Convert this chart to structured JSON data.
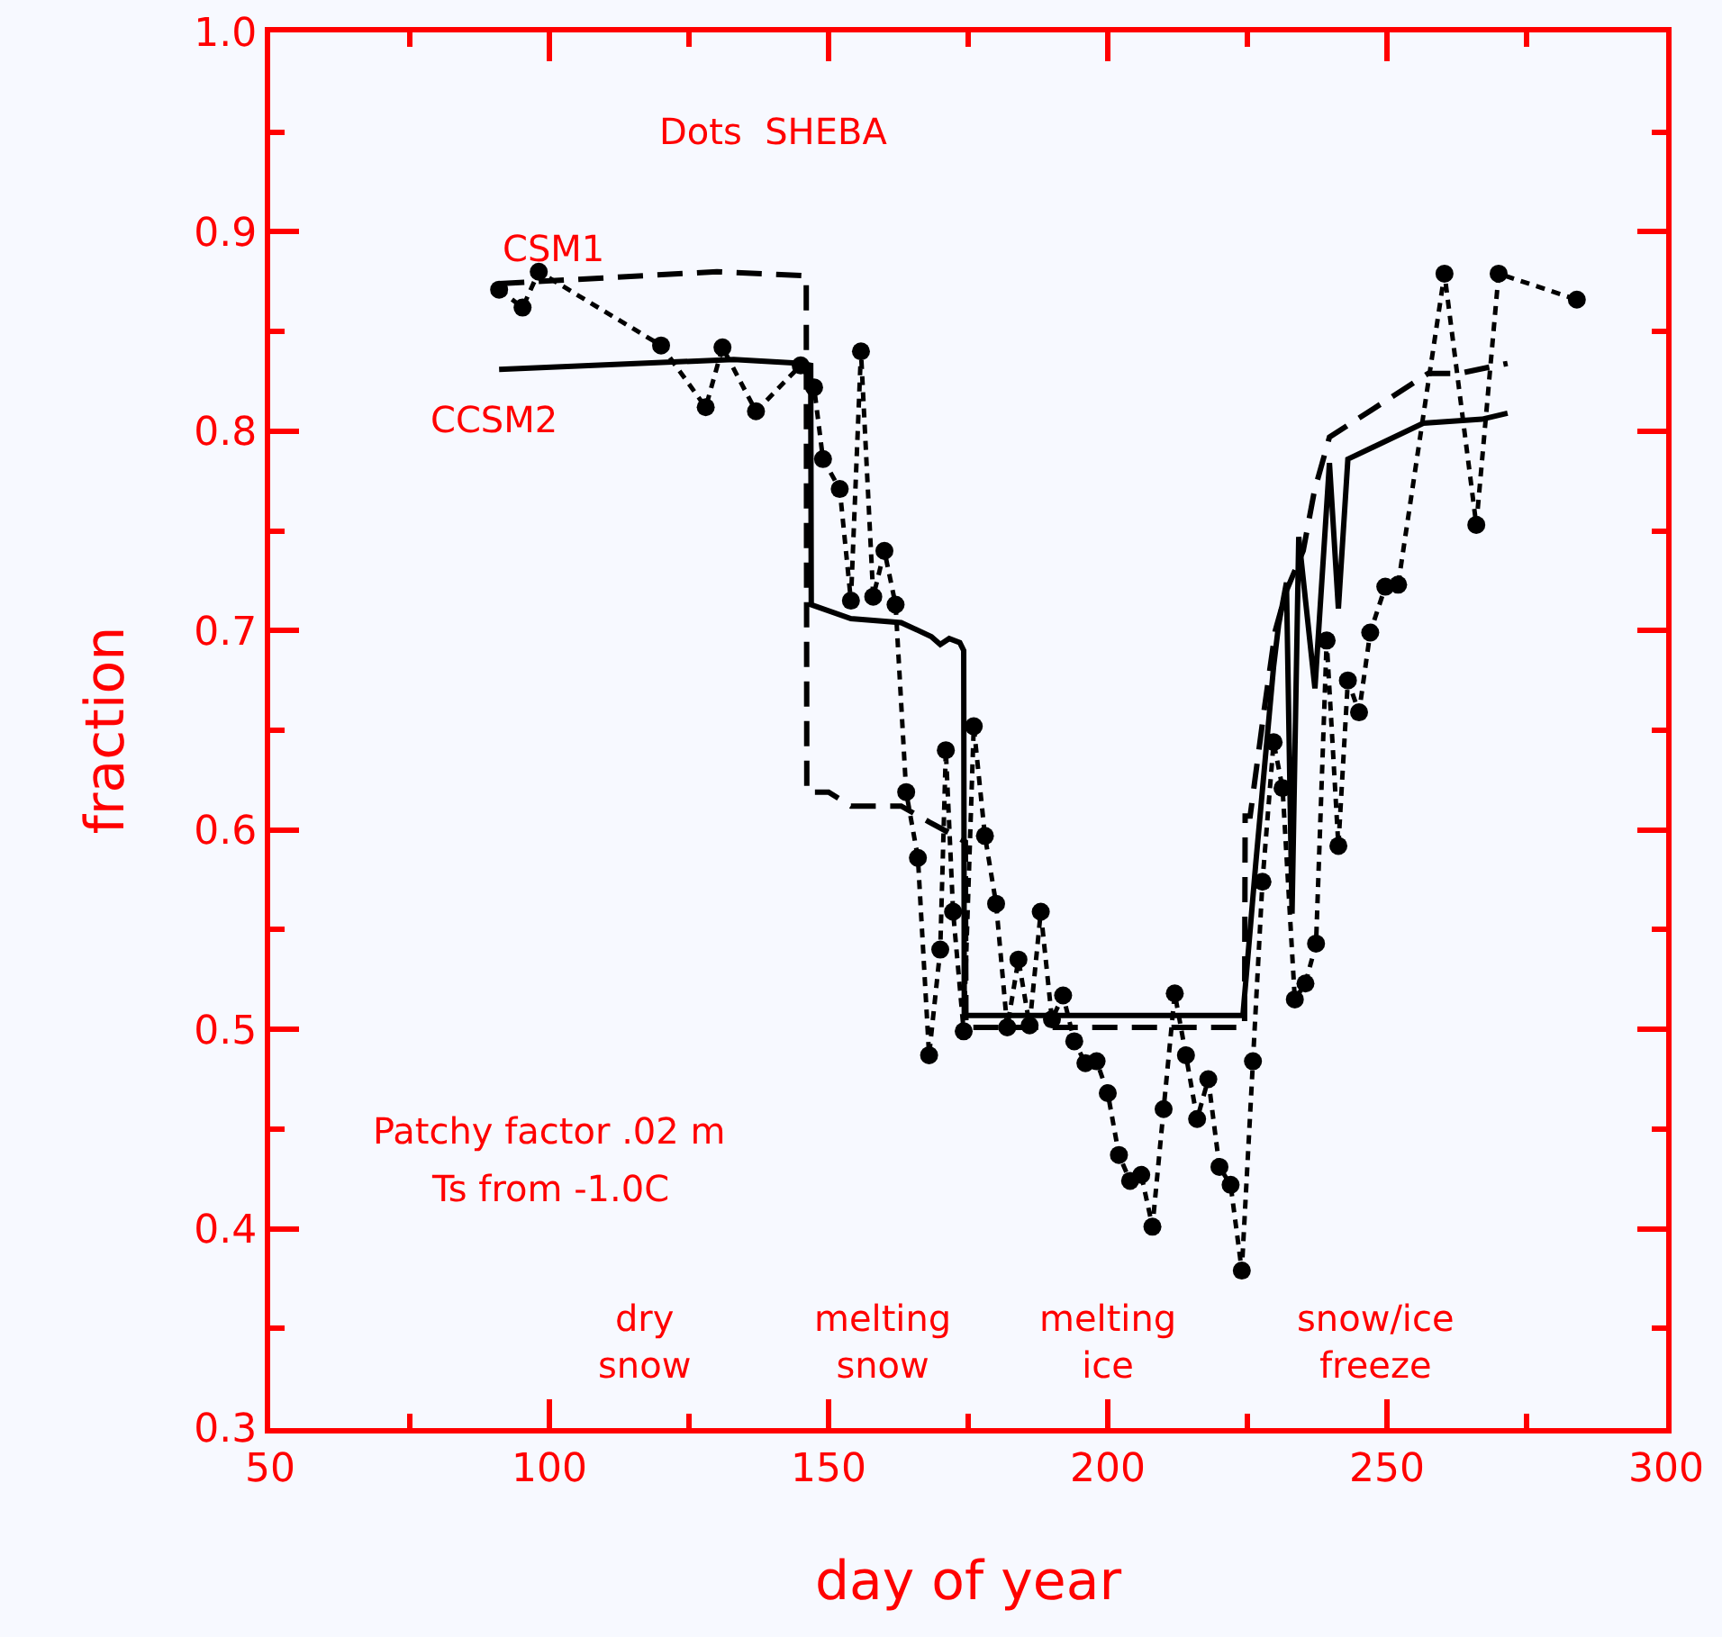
{
  "chart_data": {
    "type": "line",
    "xlabel": "day of year",
    "ylabel": "fraction",
    "xlim": [
      50,
      300
    ],
    "ylim": [
      0.3,
      1.0
    ],
    "xticks": [
      50,
      {
        "value": 75,
        "label": null
      },
      100,
      {
        "value": 125,
        "label": null
      },
      150,
      {
        "value": 175,
        "label": null
      },
      200,
      {
        "value": 225,
        "label": null
      },
      250,
      {
        "value": 275,
        "label": null
      },
      300
    ],
    "yticks": [
      {
        "value": 0.3,
        "label": "0.3"
      },
      {
        "value": 0.35,
        "label": null
      },
      {
        "value": 0.4,
        "label": "0.4"
      },
      {
        "value": 0.45,
        "label": null
      },
      {
        "value": 0.5,
        "label": "0.5"
      },
      {
        "value": 0.55,
        "label": null
      },
      {
        "value": 0.6,
        "label": "0.6"
      },
      {
        "value": 0.65,
        "label": null
      },
      {
        "value": 0.7,
        "label": "0.7"
      },
      {
        "value": 0.75,
        "label": null
      },
      {
        "value": 0.8,
        "label": "0.8"
      },
      {
        "value": 0.85,
        "label": null
      },
      {
        "value": 0.9,
        "label": "0.9"
      },
      {
        "value": 0.95,
        "label": null
      },
      {
        "value": 1.0,
        "label": "1.0"
      }
    ],
    "grid": false,
    "legend": false,
    "series": [
      {
        "color": "#000000",
        "marker": "circle",
        "line_style": "dashed",
        "x": [
          91,
          95.2,
          98.1,
          120,
          128,
          131,
          137,
          145,
          147.4,
          149,
          152,
          154,
          155.8,
          158,
          160,
          162,
          163.9,
          166,
          168,
          170,
          171,
          172.3,
          174.2,
          176,
          178,
          180,
          182,
          184,
          186,
          188,
          190,
          192,
          194,
          196,
          198,
          200,
          202,
          204,
          206,
          208,
          210,
          212,
          214,
          216,
          218,
          220,
          222,
          224,
          226,
          227.7,
          229.7,
          231.3,
          233.5,
          235.4,
          237.3,
          239.2,
          241.3,
          243,
          245,
          247,
          249.7,
          252,
          260.3,
          266,
          270,
          284
        ],
        "values": [
          0.871,
          0.862,
          0.88,
          0.843,
          0.812,
          0.842,
          0.81,
          0.833,
          0.822,
          0.786,
          0.771,
          0.715,
          0.84,
          0.717,
          0.74,
          0.713,
          0.619,
          0.586,
          0.487,
          0.54,
          0.64,
          0.559,
          0.499,
          0.652,
          0.597,
          0.563,
          0.501,
          0.535,
          0.502,
          0.559,
          0.505,
          0.517,
          0.494,
          0.483,
          0.484,
          0.468,
          0.437,
          0.424,
          0.427,
          0.401,
          0.46,
          0.518,
          0.487,
          0.455,
          0.475,
          0.431,
          0.422,
          0.379,
          0.484,
          0.574,
          0.644,
          0.621,
          0.515,
          0.523,
          0.543,
          0.695,
          0.592,
          0.675,
          0.659,
          0.699,
          0.722,
          0.723,
          0.879,
          0.753,
          0.879,
          0.866
        ]
      },
      {
        "name": "CSM1",
        "color": "#000000",
        "marker": "none",
        "line_style": "dashed",
        "x": [
          91,
          130,
          146,
          146.1,
          150,
          154,
          163,
          168,
          172,
          174.5,
          174.6,
          224.5,
          224.6,
          225.5,
          228,
          230,
          232,
          235,
          237,
          239.7,
          257.4,
          263,
          271.6
        ],
        "values": [
          0.874,
          0.88,
          0.878,
          0.619,
          0.619,
          0.612,
          0.612,
          0.604,
          0.598,
          0.594,
          0.501,
          0.501,
          0.607,
          0.607,
          0.66,
          0.7,
          0.72,
          0.74,
          0.77,
          0.797,
          0.829,
          0.829,
          0.834
        ]
      },
      {
        "name": "CCSM2",
        "color": "#000000",
        "marker": "none",
        "line_style": "solid",
        "x": [
          91,
          133,
          145,
          146.8,
          146.9,
          154,
          163,
          168.4,
          170,
          171.6,
          173.5,
          174.2,
          174.3,
          224.2,
          226.5,
          229.7,
          230.6,
          232,
          233,
          234.2,
          237.1,
          239.7,
          241.3,
          243,
          256.5,
          267,
          271.6
        ],
        "values": [
          0.831,
          0.836,
          0.834,
          0.833,
          0.713,
          0.706,
          0.704,
          0.697,
          0.693,
          0.696,
          0.694,
          0.69,
          0.507,
          0.507,
          0.583,
          0.682,
          0.703,
          0.724,
          0.558,
          0.747,
          0.671,
          0.784,
          0.711,
          0.786,
          0.804,
          0.806,
          0.809
        ]
      }
    ],
    "annotations": [
      "Dots  SHEBA",
      "Patchy factor .02 m",
      "Ts from -1.0C",
      "dry\nsnow",
      "melting\nsnow",
      "melting\nice",
      "snow/ice\nfreeze"
    ]
  }
}
